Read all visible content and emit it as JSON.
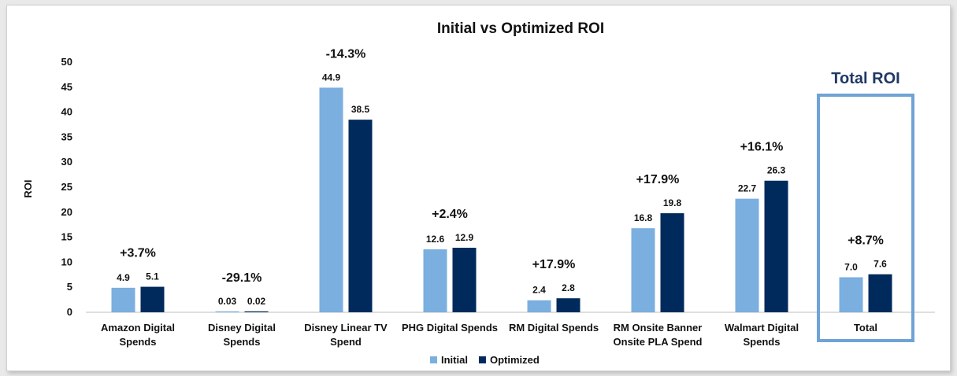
{
  "chart_data": {
    "type": "bar",
    "title": "Initial vs Optimized ROI",
    "xlabel": "",
    "ylabel": "ROI",
    "ylim": [
      0,
      50
    ],
    "yticks": [
      0,
      5,
      10,
      15,
      20,
      25,
      30,
      35,
      40,
      45,
      50
    ],
    "grid": false,
    "legend_position": "bottom",
    "categories": [
      [
        "Amazon Digital",
        "Spends"
      ],
      [
        "Disney Digital",
        "Spends"
      ],
      [
        "Disney Linear TV",
        "Spend"
      ],
      [
        "PHG Digital Spends"
      ],
      [
        "RM Digital Spends"
      ],
      [
        "RM Onsite Banner",
        "Onsite PLA Spend"
      ],
      [
        "Walmart Digital",
        "Spends"
      ],
      [
        "Total"
      ]
    ],
    "series": [
      {
        "name": "Initial",
        "color": "#7aafdf",
        "values": [
          4.9,
          0.03,
          44.9,
          12.6,
          2.4,
          16.8,
          22.7,
          7.0
        ],
        "labels": [
          "4.9",
          "0.03",
          "44.9",
          "12.6",
          "2.4",
          "16.8",
          "22.7",
          "7.0"
        ]
      },
      {
        "name": "Optimized",
        "color": "#002a5c",
        "values": [
          5.1,
          0.02,
          38.5,
          12.9,
          2.8,
          19.8,
          26.3,
          7.6
        ],
        "labels": [
          "5.1",
          "0.02",
          "38.5",
          "12.9",
          "2.8",
          "19.8",
          "26.3",
          "7.6"
        ]
      }
    ],
    "changes": [
      "+3.7%",
      "-29.1%",
      "-14.3%",
      "+2.4%",
      "+17.9%",
      "+17.9%",
      "+16.1%",
      "+8.7%"
    ],
    "highlight": {
      "category_index": 7,
      "label": "Total ROI",
      "color": "#6fa3d6",
      "label_color": "#1f3864"
    }
  }
}
